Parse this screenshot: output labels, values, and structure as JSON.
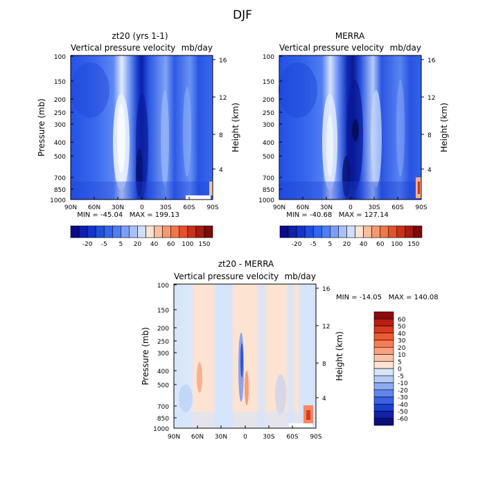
{
  "title": "DJF",
  "panels": [
    {
      "id": "zt20",
      "title": "zt20 (yrs 1-1)",
      "subtitle_left": "Vertical pressure velocity",
      "subtitle_right": "mb/day",
      "ylabel": "Pressure (mb)",
      "ylabel_right": "Height (km)",
      "stats": "MIN = -45.04   MAX = 199.13"
    },
    {
      "id": "merra",
      "title": "MERRA",
      "subtitle_left": "Vertical pressure velocity",
      "subtitle_right": "mb/day",
      "ylabel": "Pressure (mb)",
      "ylabel_right": "Height (km)",
      "stats": "MIN = -40.68   MAX = 127.14"
    },
    {
      "id": "diff",
      "title": "zt20 - MERRA",
      "subtitle_left": "Vertical pressure velocity",
      "subtitle_right": "mb/day",
      "ylabel": "Pressure (mb)",
      "ylabel_right": "Height (km)",
      "stats": "MIN = -14.05   MAX = 140.08"
    }
  ],
  "colorbar_top": {
    "labels": [
      "-20",
      "-5",
      "5",
      "20",
      "40",
      "60",
      "100",
      "150"
    ],
    "colors": [
      "#0a0a8c",
      "#0d1fb0",
      "#1433cc",
      "#1e4fe0",
      "#3366ee",
      "#4d7ef5",
      "#7a9ef8",
      "#a7c0fb",
      "#cfdffd",
      "#fde3d2",
      "#fbbd9e",
      "#f7986f",
      "#f17548",
      "#e4512c",
      "#c9321a",
      "#a61c10",
      "#7d0b08"
    ]
  },
  "colorbar_diff": {
    "labels": [
      "60",
      "50",
      "40",
      "30",
      "20",
      "10",
      "5",
      "0",
      "-5",
      "-10",
      "-20",
      "-30",
      "-40",
      "-50",
      "-60"
    ],
    "colors": [
      "#8c0a0a",
      "#b81c12",
      "#d93a1f",
      "#ef5a32",
      "#f57d55",
      "#f8a27f",
      "#fbc4a8",
      "#fde3d2",
      "#d6e5fb",
      "#b3ccf7",
      "#8cacf2",
      "#5f86ec",
      "#3a62e2",
      "#1c3fcf",
      "#0f22a8",
      "#0a0f7a"
    ]
  },
  "chart_data": [
    {
      "type": "heatmap",
      "title": "zt20 (yrs 1-1)",
      "variable": "Vertical pressure velocity",
      "units": "mb/day",
      "xlabel": "",
      "x_ticks": [
        "90N",
        "60N",
        "30N",
        "0",
        "30S",
        "60S",
        "90S"
      ],
      "ylabel": "Pressure (mb)",
      "y_ticks": [
        100,
        150,
        200,
        250,
        300,
        400,
        500,
        700,
        850,
        1000
      ],
      "y_scale": "log",
      "ylim": [
        1000,
        100
      ],
      "y2label": "Height (km)",
      "y2_ticks": [
        4,
        8,
        12,
        16
      ],
      "min": -45.04,
      "max": 199.13
    },
    {
      "type": "heatmap",
      "title": "MERRA",
      "variable": "Vertical pressure velocity",
      "units": "mb/day",
      "xlabel": "",
      "x_ticks": [
        "90N",
        "60N",
        "30N",
        "0",
        "30S",
        "60S",
        "90S"
      ],
      "ylabel": "Pressure (mb)",
      "y_ticks": [
        100,
        150,
        200,
        250,
        300,
        400,
        500,
        700,
        850,
        1000
      ],
      "y_scale": "log",
      "ylim": [
        1000,
        100
      ],
      "y2label": "Height (km)",
      "y2_ticks": [
        4,
        8,
        12,
        16
      ],
      "min": -40.68,
      "max": 127.14
    },
    {
      "type": "heatmap",
      "title": "zt20 - MERRA",
      "variable": "Vertical pressure velocity",
      "units": "mb/day",
      "xlabel": "",
      "x_ticks": [
        "90N",
        "60N",
        "30N",
        "0",
        "30S",
        "60S",
        "90S"
      ],
      "ylabel": "Pressure (mb)",
      "y_ticks": [
        100,
        150,
        200,
        250,
        300,
        400,
        500,
        700,
        850,
        1000
      ],
      "y_scale": "log",
      "ylim": [
        1000,
        100
      ],
      "y2label": "Height (km)",
      "y2_ticks": [
        4,
        8,
        12,
        16
      ],
      "min": -14.05,
      "max": 140.08
    }
  ]
}
